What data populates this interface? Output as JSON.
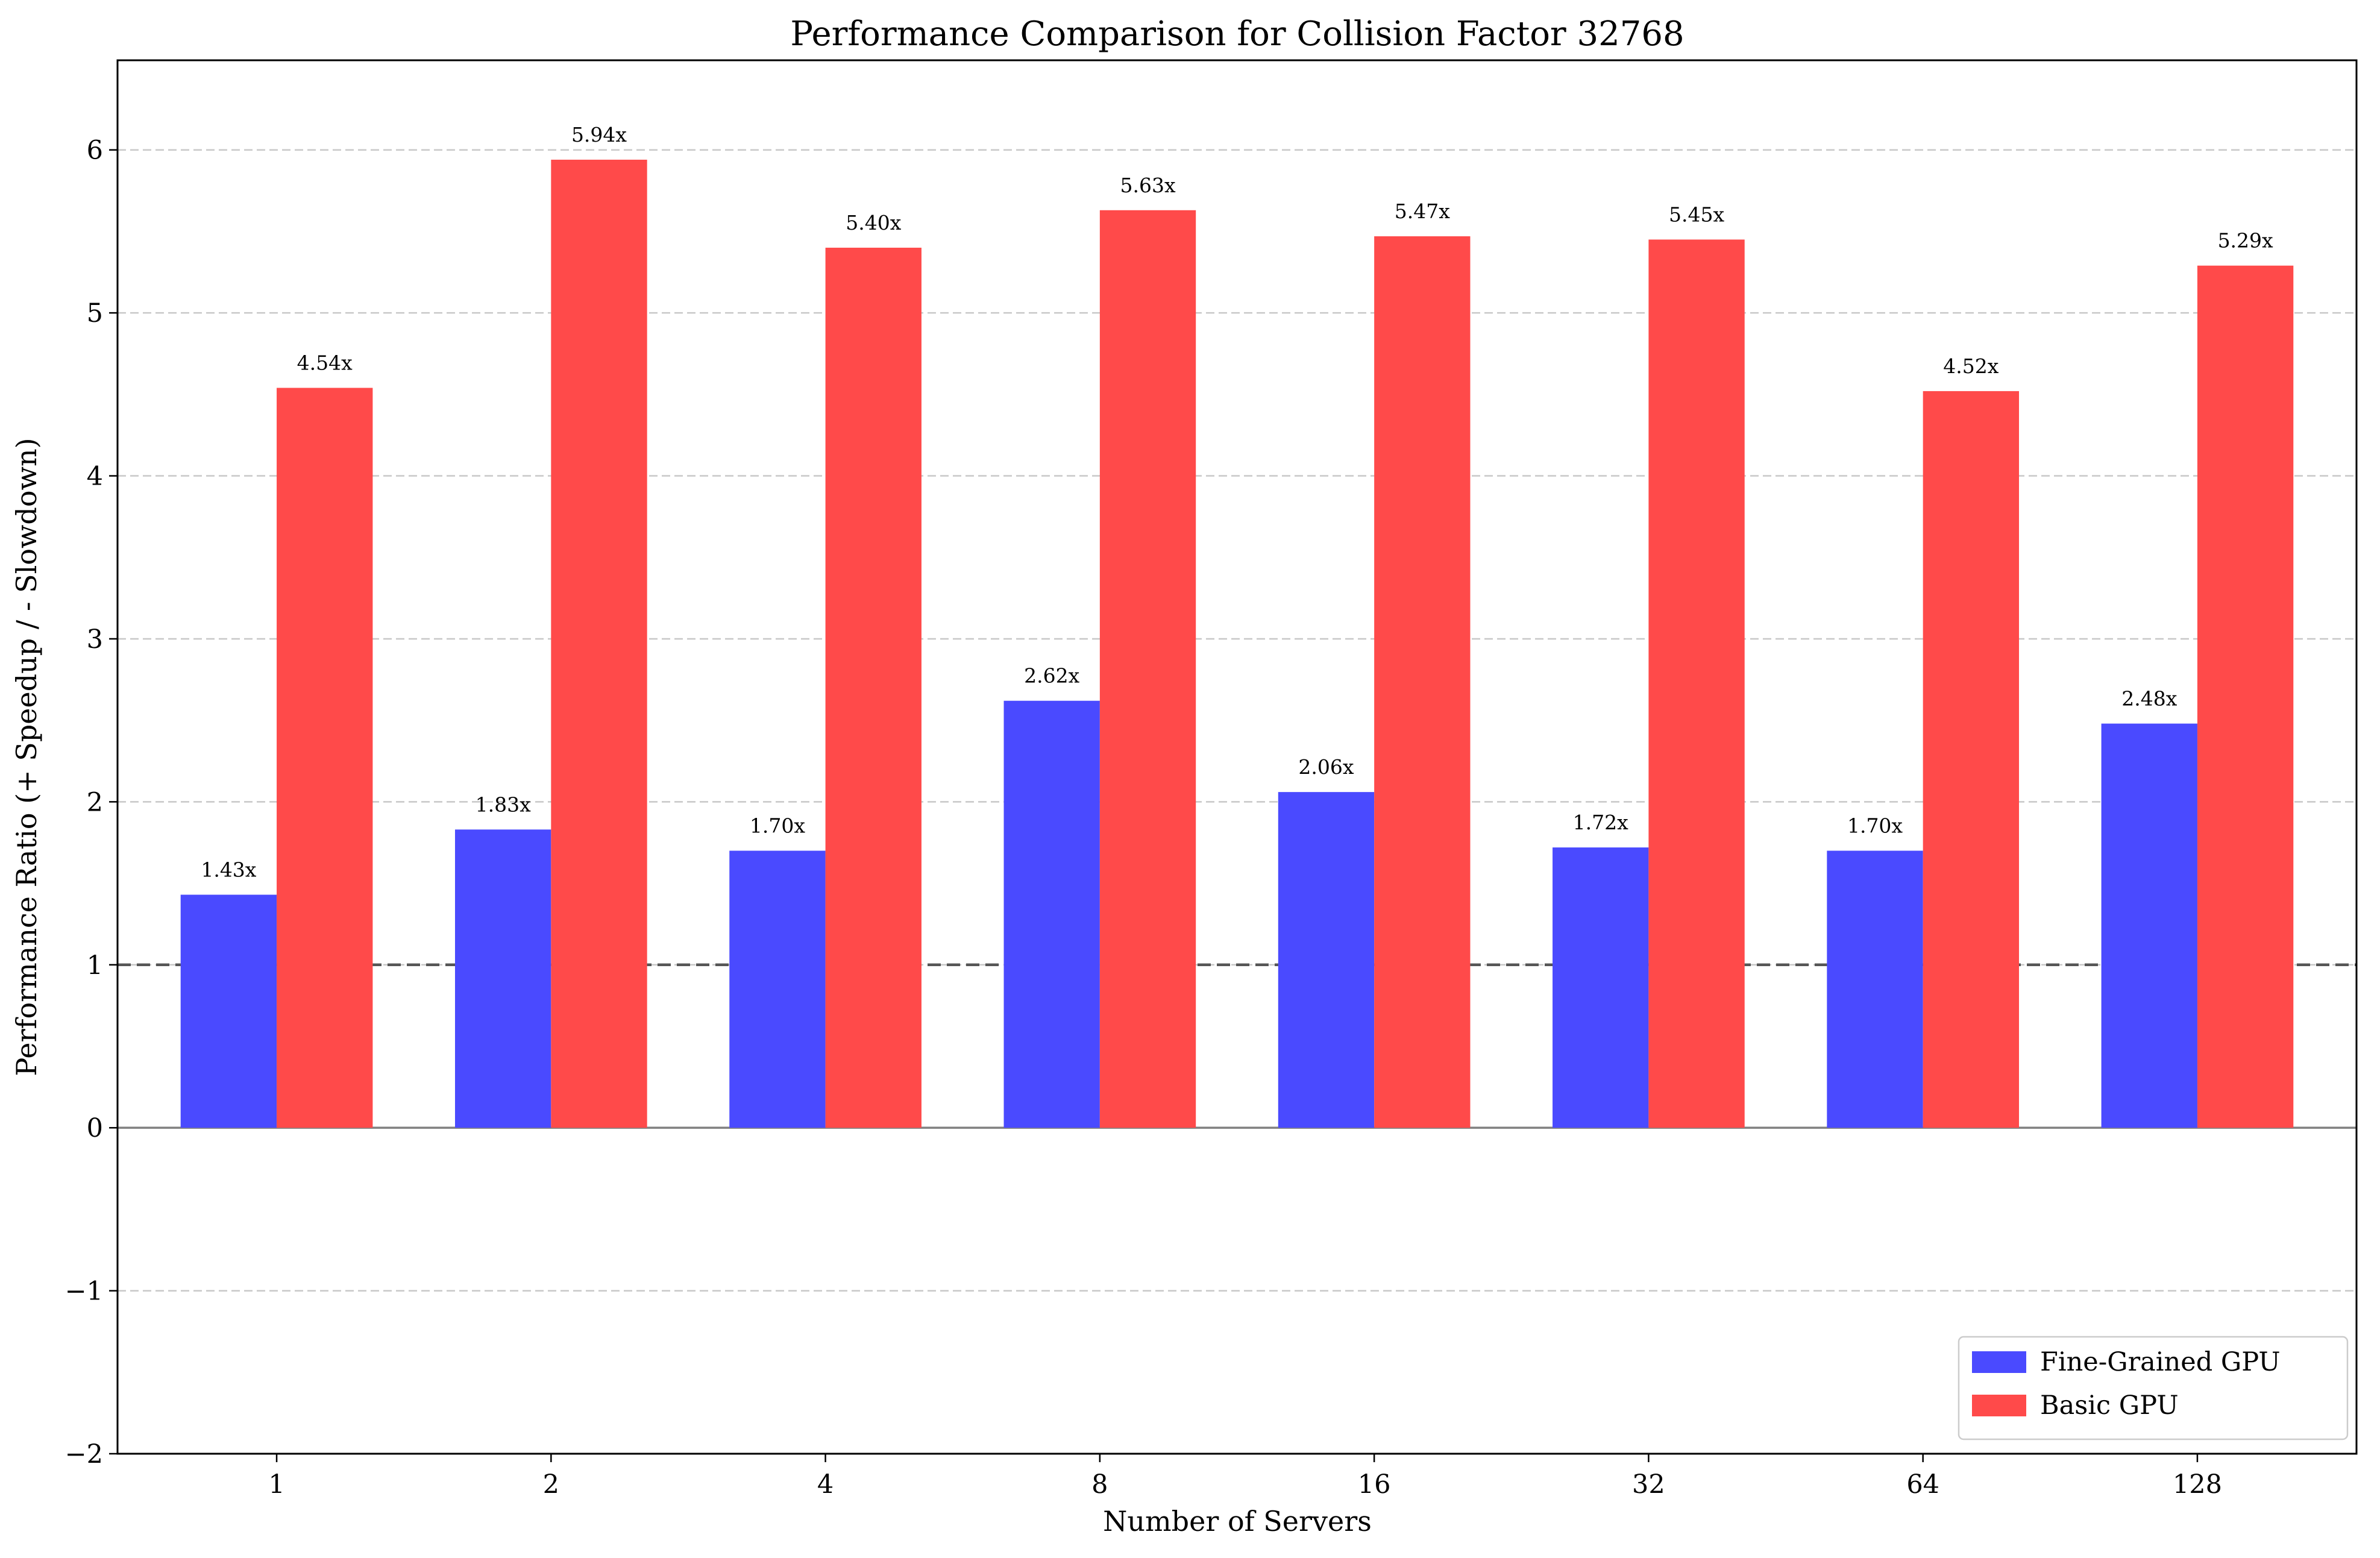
{
  "chart_data": {
    "type": "bar",
    "title": "Performance Comparison for Collision Factor 32768",
    "xlabel": "Number of Servers",
    "ylabel": "Performance Ratio (+ Speedup / - Slowdown)",
    "categories": [
      "1",
      "2",
      "4",
      "8",
      "16",
      "32",
      "64",
      "128"
    ],
    "series": [
      {
        "name": "Fine-Grained GPU",
        "color": "#4a4aff",
        "values": [
          1.43,
          1.83,
          1.7,
          2.62,
          2.06,
          1.72,
          1.7,
          2.48
        ],
        "labels": [
          "1.43x",
          "1.83x",
          "1.70x",
          "2.62x",
          "2.06x",
          "1.72x",
          "1.70x",
          "2.48x"
        ]
      },
      {
        "name": "Basic GPU",
        "color": "#ff4a4a",
        "values": [
          4.54,
          5.94,
          5.4,
          5.63,
          5.47,
          5.45,
          4.52,
          5.29
        ],
        "labels": [
          "4.54x",
          "5.94x",
          "5.40x",
          "5.63x",
          "5.47x",
          "5.45x",
          "4.52x",
          "5.29x"
        ]
      }
    ],
    "ylim": [
      -2,
      6.55
    ],
    "yticks": [
      -2,
      -1,
      0,
      1,
      2,
      3,
      4,
      5,
      6
    ],
    "ytick_labels": [
      "−2",
      "−1",
      "0",
      "1",
      "2",
      "3",
      "4",
      "5",
      "6"
    ],
    "reference_line": 1,
    "zero_line": 0,
    "grid": "y-dashed",
    "legend": "bottom-right"
  }
}
